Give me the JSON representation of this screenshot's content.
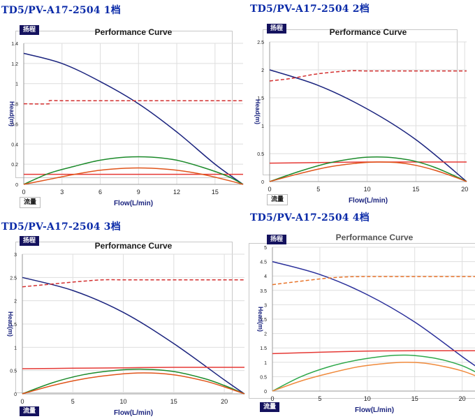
{
  "labels": {
    "head_badge": "扬程",
    "flow_badge": "流量"
  },
  "chart_data": [
    {
      "type": "line",
      "heading": "TD5/PV-A17-2504 1档",
      "title": "Performance Curve",
      "xlabel": "Flow(L/min)",
      "ylabel": "Head(m)",
      "xlim": [
        0,
        17.2
      ],
      "ylim": [
        0,
        1.4
      ],
      "xticks": [
        0,
        3,
        6,
        9,
        12,
        15
      ],
      "yticks": [
        0,
        0.2,
        0.4,
        0.6,
        0.8,
        1,
        1.2,
        1.4
      ],
      "ytick_labels": [
        "0",
        "0.2",
        "0.4",
        "0.6",
        ".8",
        "1",
        "1.2",
        "1.4"
      ],
      "grid": true,
      "series": [
        {
          "style": "head",
          "color": "#1a237e",
          "dash": false,
          "x": [
            0,
            3,
            6,
            9,
            12,
            15,
            17.2
          ],
          "y": [
            1.3,
            1.2,
            1.02,
            0.8,
            0.52,
            0.2,
            0
          ]
        },
        {
          "style": "current",
          "color": "#d32f2f",
          "dash": true,
          "x": [
            0,
            2,
            2,
            3,
            6,
            9,
            12,
            15,
            17.2
          ],
          "y": [
            0.8,
            0.8,
            0.83,
            0.83,
            0.83,
            0.83,
            0.83,
            0.83,
            0.83
          ]
        },
        {
          "style": "power",
          "color": "#e53935",
          "dash": false,
          "x": [
            0,
            3,
            6,
            9,
            12,
            15,
            17.2
          ],
          "y": [
            0.1,
            0.1,
            0.1,
            0.1,
            0.1,
            0.1,
            0.1
          ]
        },
        {
          "style": "efficiency",
          "color": "#1b8a2a",
          "dash": false,
          "x": [
            0,
            2,
            4,
            6,
            8,
            10,
            12,
            14,
            16,
            17.2
          ],
          "y": [
            0,
            0.11,
            0.18,
            0.24,
            0.27,
            0.27,
            0.24,
            0.17,
            0.08,
            0
          ]
        },
        {
          "style": "output",
          "color": "#e0541a",
          "dash": false,
          "x": [
            0,
            2,
            4,
            6,
            8,
            10,
            12,
            14,
            16,
            17.2
          ],
          "y": [
            0,
            0.05,
            0.1,
            0.14,
            0.16,
            0.16,
            0.14,
            0.1,
            0.04,
            0
          ]
        }
      ]
    },
    {
      "type": "line",
      "heading": "TD5/PV-A17-2504 2档",
      "title": "Performance Curve",
      "xlabel": "Flow(L/min)",
      "ylabel": "Head(m)",
      "xlim": [
        0,
        20.2
      ],
      "ylim": [
        0,
        2.5
      ],
      "xticks": [
        0,
        5,
        10,
        15,
        20
      ],
      "yticks": [
        0,
        0.5,
        1,
        1.5,
        2,
        2.5
      ],
      "ytick_labels": [
        "0",
        "0.5",
        "1",
        "1.5",
        "2",
        "2.5"
      ],
      "grid": true,
      "series": [
        {
          "style": "head",
          "color": "#1a237e",
          "dash": false,
          "x": [
            0,
            5,
            10,
            15,
            20.2
          ],
          "y": [
            2.0,
            1.72,
            1.3,
            0.75,
            0
          ]
        },
        {
          "style": "current",
          "color": "#d32f2f",
          "dash": true,
          "x": [
            0,
            1,
            2,
            3,
            5,
            8,
            10,
            13,
            16,
            20.2
          ],
          "y": [
            1.8,
            1.82,
            1.84,
            1.87,
            1.93,
            1.98,
            1.98,
            1.98,
            1.98,
            1.98
          ]
        },
        {
          "style": "power",
          "color": "#e53935",
          "dash": false,
          "x": [
            0,
            5,
            10,
            15,
            20.2
          ],
          "y": [
            0.33,
            0.34,
            0.35,
            0.35,
            0.35
          ]
        },
        {
          "style": "efficiency",
          "color": "#1b8a2a",
          "dash": false,
          "x": [
            0,
            3,
            6,
            9,
            11,
            13,
            15,
            17,
            19,
            20.2
          ],
          "y": [
            0,
            0.18,
            0.33,
            0.42,
            0.44,
            0.42,
            0.36,
            0.25,
            0.1,
            0
          ]
        },
        {
          "style": "output",
          "color": "#e0541a",
          "dash": false,
          "x": [
            0,
            3,
            6,
            9,
            11,
            13,
            15,
            17,
            19,
            20.2
          ],
          "y": [
            0,
            0.14,
            0.26,
            0.33,
            0.35,
            0.34,
            0.29,
            0.2,
            0.08,
            0
          ]
        }
      ]
    },
    {
      "type": "line",
      "heading": "TD5/PV-A17-2504 3档",
      "title": "Performance Curve",
      "xlabel": "Flow(L/min)",
      "ylabel": "Head(m)",
      "xlim": [
        0,
        22
      ],
      "ylim": [
        0,
        3
      ],
      "xticks": [
        0,
        5,
        10,
        15,
        20
      ],
      "yticks": [
        0,
        0.5,
        1,
        1.5,
        2,
        2.5,
        3
      ],
      "ytick_labels": [
        "0",
        "0.5",
        "1",
        "1.5",
        "2",
        "2.5",
        "3"
      ],
      "grid": true,
      "series": [
        {
          "style": "head",
          "color": "#1a237e",
          "dash": false,
          "x": [
            0,
            5,
            10,
            15,
            20,
            22
          ],
          "y": [
            2.5,
            2.22,
            1.75,
            1.08,
            0.3,
            0
          ]
        },
        {
          "style": "current",
          "color": "#d32f2f",
          "dash": true,
          "x": [
            0,
            2,
            4,
            6,
            8,
            10,
            15,
            22
          ],
          "y": [
            2.3,
            2.34,
            2.38,
            2.42,
            2.45,
            2.45,
            2.45,
            2.45
          ]
        },
        {
          "style": "power",
          "color": "#e53935",
          "dash": false,
          "x": [
            0,
            5,
            10,
            15,
            22
          ],
          "y": [
            0.54,
            0.55,
            0.56,
            0.57,
            0.57
          ]
        },
        {
          "style": "efficiency",
          "color": "#1b8a2a",
          "dash": false,
          "x": [
            0,
            3,
            6,
            9,
            12,
            15,
            18,
            20,
            22
          ],
          "y": [
            0,
            0.24,
            0.41,
            0.5,
            0.53,
            0.48,
            0.33,
            0.18,
            0
          ]
        },
        {
          "style": "output",
          "color": "#e0541a",
          "dash": false,
          "x": [
            0,
            3,
            6,
            9,
            12,
            15,
            18,
            20,
            22
          ],
          "y": [
            0,
            0.18,
            0.32,
            0.41,
            0.45,
            0.41,
            0.28,
            0.15,
            0
          ]
        }
      ]
    },
    {
      "type": "line",
      "heading": "TD5/PV-A17-2504 4档",
      "title": "Performance Curve",
      "xlabel": "Flow(L/min)",
      "ylabel": "Head(m)",
      "xlim": [
        0,
        21.5
      ],
      "ylim": [
        0,
        5
      ],
      "xticks": [
        0,
        5,
        10,
        15,
        20
      ],
      "yticks": [
        0,
        0.5,
        1,
        1.5,
        2,
        2.5,
        3,
        3.5,
        4,
        4.5,
        5
      ],
      "ytick_labels": [
        "0",
        "0.5",
        "1",
        "1.5",
        "2",
        "2.5",
        "3",
        "3.5",
        "4",
        "4.5",
        "5"
      ],
      "grid": true,
      "series": [
        {
          "style": "head",
          "color": "#2a2f9a",
          "dash": false,
          "x": [
            0,
            5,
            10,
            15,
            20,
            21.5
          ],
          "y": [
            4.5,
            4.05,
            3.35,
            2.4,
            1.2,
            0.85
          ]
        },
        {
          "style": "current",
          "color": "#e8742a",
          "dash": true,
          "x": [
            0,
            2,
            4,
            6,
            8,
            10,
            15,
            21.5
          ],
          "y": [
            3.7,
            3.78,
            3.86,
            3.93,
            3.97,
            3.98,
            3.98,
            3.98
          ]
        },
        {
          "style": "power",
          "color": "#e53935",
          "dash": false,
          "x": [
            0,
            5,
            10,
            15,
            21.5
          ],
          "y": [
            1.3,
            1.35,
            1.39,
            1.4,
            1.4
          ]
        },
        {
          "style": "efficiency",
          "color": "#2ea84a",
          "dash": false,
          "x": [
            0,
            3,
            6,
            9,
            12,
            14,
            16,
            18,
            20,
            21.5
          ],
          "y": [
            0,
            0.5,
            0.85,
            1.08,
            1.22,
            1.25,
            1.2,
            1.08,
            0.88,
            0.65
          ]
        },
        {
          "style": "output",
          "color": "#f08a3c",
          "dash": false,
          "x": [
            0,
            3,
            6,
            9,
            12,
            14,
            16,
            18,
            20,
            21.5
          ],
          "y": [
            0,
            0.35,
            0.62,
            0.84,
            0.96,
            1.0,
            0.97,
            0.86,
            0.7,
            0.52
          ]
        }
      ]
    }
  ]
}
